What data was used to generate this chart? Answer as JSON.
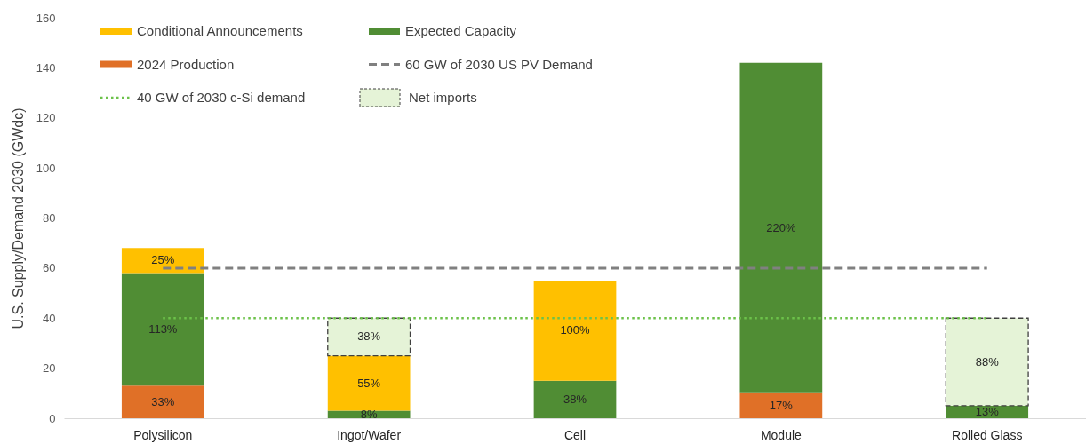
{
  "chart_data": {
    "type": "bar",
    "stacked": true,
    "ylabel": "U.S. Supply/Demand 2030 (GWdc)",
    "categories": [
      "Polysilicon",
      "Ingot/Wafer",
      "Cell",
      "Module",
      "Rolled Glass"
    ],
    "series": [
      {
        "name": "2024 Production",
        "color": "#e07027",
        "values": [
          13,
          null,
          null,
          10,
          null
        ]
      },
      {
        "name": "Expected Capacity",
        "color": "#508d34",
        "values": [
          45,
          3,
          15,
          132,
          5
        ]
      },
      {
        "name": "Conditional Announcements",
        "color": "#ffc000",
        "values": [
          10,
          22,
          40,
          null,
          null
        ]
      },
      {
        "name": "Net imports",
        "color": "#e5f3d7",
        "values": [
          null,
          15,
          null,
          null,
          35
        ],
        "line_style": "dashed"
      }
    ],
    "annotations": [
      "33%",
      "113%",
      "25%",
      "8%",
      "55%",
      "38%",
      "38%",
      "100%",
      "17%",
      "220%",
      "13%",
      "88%"
    ],
    "ylim": [
      0,
      160
    ],
    "yticks": [
      0,
      20,
      40,
      60,
      80,
      100,
      120,
      140,
      160
    ],
    "grid": false,
    "legend": "top left",
    "ref_lines": [
      {
        "axis": "y",
        "value": 60,
        "label": "60 GW of 2030 US PV Demand",
        "color": "#808080",
        "line_style": "dashed"
      },
      {
        "axis": "y",
        "value": 40,
        "label": "40 GW of 2030 c-Si demand",
        "color": "#6cc24a",
        "line_style": "dotted"
      }
    ]
  }
}
